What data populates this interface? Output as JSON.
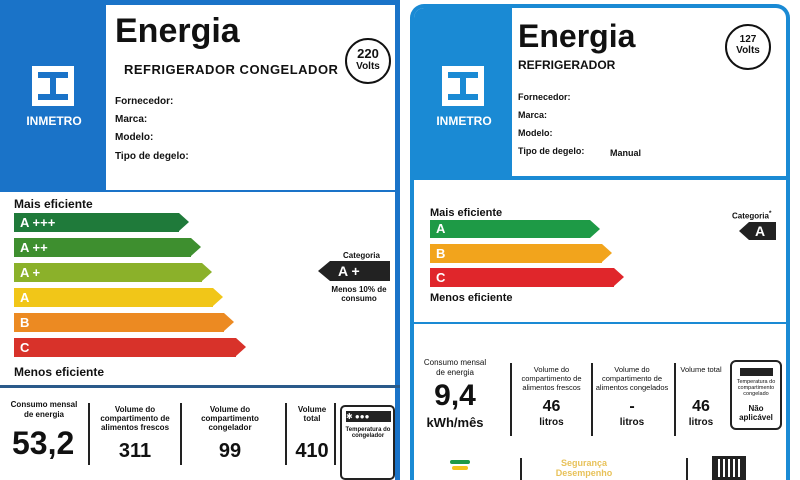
{
  "left_label": {
    "title": "Energia",
    "subtitle": "REFRIGERADOR CONGELADOR",
    "voltage": "220",
    "voltage_unit": "Volts",
    "brand": "INMETRO",
    "fields": [
      "Fornecedor:",
      "Marca:",
      "Modelo:",
      "Tipo de degelo:"
    ],
    "most_efficient": "Mais eficiente",
    "least_efficient": "Menos eficiente",
    "classes": [
      {
        "label": "A +++",
        "color": "#1f7a3a"
      },
      {
        "label": "A ++",
        "color": "#3e8f2f"
      },
      {
        "label": "A +",
        "color": "#8bb12a"
      },
      {
        "label": "A",
        "color": "#f1c618"
      },
      {
        "label": "B",
        "color": "#ec8a22"
      },
      {
        "label": "C",
        "color": "#d8322a"
      }
    ],
    "category_label": "Categoria",
    "category": "A +",
    "category_note": "Menos 10% de consumo",
    "consumption_label": "Consumo mensal de energia",
    "consumption": "53,2",
    "fresh_label": "Volume do compartimento de alimentos frescos",
    "fresh": "311",
    "freezer_label": "Volume do compartimento congelador",
    "freezer": "99",
    "total_label": "Volume total",
    "total": "410",
    "temp_label": "Temperatura do congelador"
  },
  "right_label": {
    "title": "Energia",
    "subtitle": "REFRIGERADOR",
    "voltage": "127",
    "voltage_unit": "Volts",
    "brand": "INMETRO",
    "fields": [
      "Fornecedor:",
      "Marca:",
      "Modelo:",
      "Tipo de degelo:"
    ],
    "defrost": "Manual",
    "most_efficient": "Mais eficiente",
    "least_efficient": "Menos eficiente",
    "classes": [
      {
        "label": "A",
        "color": "#1e9a46"
      },
      {
        "label": "B",
        "color": "#f2a41c"
      },
      {
        "label": "C",
        "color": "#e0262b"
      }
    ],
    "category_label": "Categoria",
    "category_mark": "*",
    "category": "A",
    "consumption_label": "Consumo mensal de energia",
    "consumption": "9,4",
    "consumption_unit": "kWh/mês",
    "fresh_label": "Volume do compartimento de alimentos frescos",
    "fresh": "46",
    "fresh_unit": "litros",
    "freezer_label": "Volume do compartimento de alimentos congelados",
    "freezer": "-",
    "freezer_unit": "litros",
    "total_label": "Volume total",
    "total": "46",
    "total_unit": "litros",
    "temp_label": "Temperatura do compartimento congelado",
    "temp_value": "Não aplicável",
    "seal_text": "Segurança Desempenho"
  }
}
